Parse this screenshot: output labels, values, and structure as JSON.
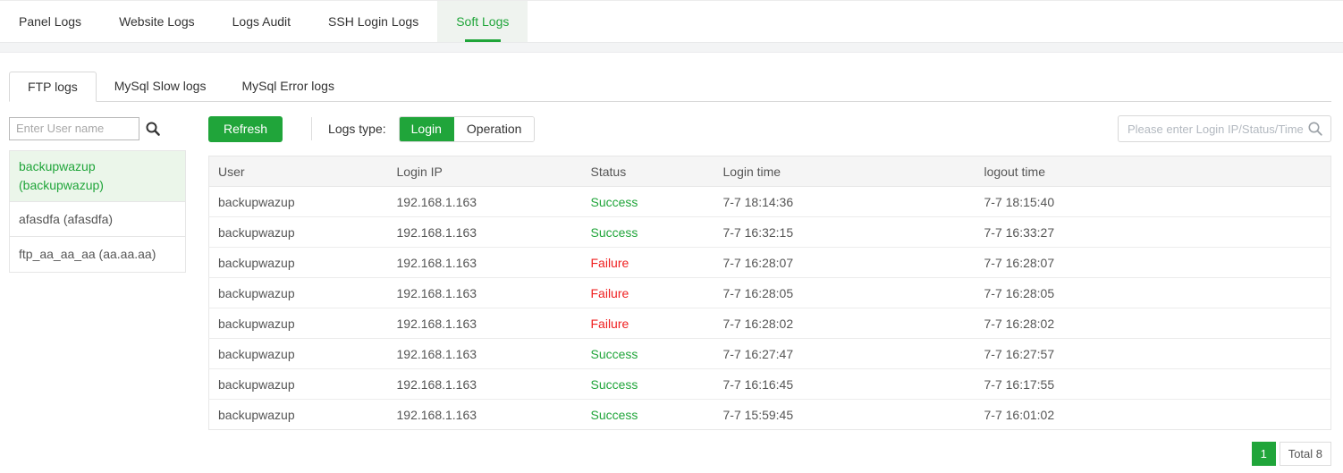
{
  "top_tabs": [
    {
      "label": "Panel Logs",
      "active": false
    },
    {
      "label": "Website Logs",
      "active": false
    },
    {
      "label": "Logs Audit",
      "active": false
    },
    {
      "label": "SSH Login Logs",
      "active": false
    },
    {
      "label": "Soft Logs",
      "active": true
    }
  ],
  "sub_tabs": [
    {
      "label": "FTP logs",
      "active": true
    },
    {
      "label": "MySql Slow logs",
      "active": false
    },
    {
      "label": "MySql Error logs",
      "active": false
    }
  ],
  "user_search": {
    "placeholder": "Enter User name",
    "value": ""
  },
  "user_list": [
    {
      "label": "backupwazup (backupwazup)",
      "selected": true
    },
    {
      "label": "afasdfa (afasdfa)",
      "selected": false
    },
    {
      "label": "ftp_aa_aa_aa (aa.aa.aa)",
      "selected": false
    }
  ],
  "toolbar": {
    "refresh_label": "Refresh",
    "logs_type_label": "Logs type:",
    "type_buttons": [
      {
        "label": "Login",
        "active": true
      },
      {
        "label": "Operation",
        "active": false
      }
    ],
    "search_placeholder": "Please enter Login IP/Status/Time",
    "search_value": ""
  },
  "table": {
    "columns": [
      "User",
      "Login IP",
      "Status",
      "Login time",
      "logout time"
    ],
    "rows": [
      {
        "user": "backupwazup",
        "ip": "192.168.1.163",
        "status": "Success",
        "login_time": "7-7 18:14:36",
        "logout_time": "7-7 18:15:40"
      },
      {
        "user": "backupwazup",
        "ip": "192.168.1.163",
        "status": "Success",
        "login_time": "7-7 16:32:15",
        "logout_time": "7-7 16:33:27"
      },
      {
        "user": "backupwazup",
        "ip": "192.168.1.163",
        "status": "Failure",
        "login_time": "7-7 16:28:07",
        "logout_time": "7-7 16:28:07"
      },
      {
        "user": "backupwazup",
        "ip": "192.168.1.163",
        "status": "Failure",
        "login_time": "7-7 16:28:05",
        "logout_time": "7-7 16:28:05"
      },
      {
        "user": "backupwazup",
        "ip": "192.168.1.163",
        "status": "Failure",
        "login_time": "7-7 16:28:02",
        "logout_time": "7-7 16:28:02"
      },
      {
        "user": "backupwazup",
        "ip": "192.168.1.163",
        "status": "Success",
        "login_time": "7-7 16:27:47",
        "logout_time": "7-7 16:27:57"
      },
      {
        "user": "backupwazup",
        "ip": "192.168.1.163",
        "status": "Success",
        "login_time": "7-7 16:16:45",
        "logout_time": "7-7 16:17:55"
      },
      {
        "user": "backupwazup",
        "ip": "192.168.1.163",
        "status": "Success",
        "login_time": "7-7 15:59:45",
        "logout_time": "7-7 16:01:02"
      }
    ]
  },
  "pagination": {
    "current_page": "1",
    "total_label": "Total 8"
  },
  "colors": {
    "accent": "#20a53a",
    "success": "#20a53a",
    "failure": "#ef2020",
    "selected_bg": "#ebf6ea"
  }
}
